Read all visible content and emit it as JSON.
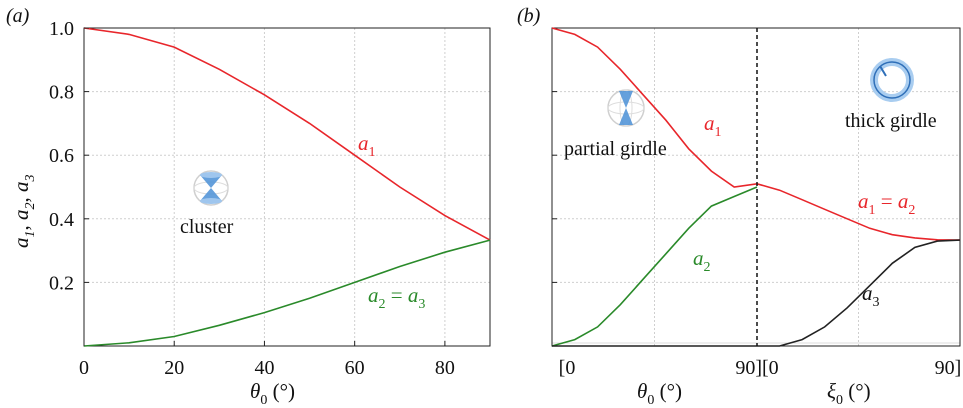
{
  "colors": {
    "red": "#e8262b",
    "green": "#2a8a2a",
    "black": "#222222",
    "icon": "#4a8fd6"
  },
  "chart_data": [
    {
      "type": "line",
      "panel": "(a)",
      "xlabel": "θ0 (°)",
      "ylabel": "a1, a2, a3",
      "xlim": [
        0,
        90
      ],
      "ylim": [
        0,
        1
      ],
      "x_ticks": [
        "0",
        "20",
        "40",
        "60",
        "80"
      ],
      "y_ticks": [
        "0.2",
        "0.4",
        "0.6",
        "0.8",
        "1.0"
      ],
      "grid": true,
      "series": [
        {
          "name": "a1",
          "color": "#e8262b",
          "x": [
            0,
            10,
            20,
            30,
            40,
            50,
            60,
            70,
            80,
            90
          ],
          "y": [
            1.0,
            0.98,
            0.94,
            0.87,
            0.79,
            0.7,
            0.6,
            0.5,
            0.41,
            0.333
          ]
        },
        {
          "name": "a2 = a3",
          "color": "#2a8a2a",
          "x": [
            0,
            10,
            20,
            30,
            40,
            50,
            60,
            70,
            80,
            90
          ],
          "y": [
            0.0,
            0.01,
            0.03,
            0.065,
            0.105,
            0.15,
            0.2,
            0.25,
            0.295,
            0.333
          ]
        }
      ],
      "annotations": {
        "a1": "a1",
        "a2a3": "a2 = a3",
        "cluster": "cluster"
      }
    },
    {
      "type": "line",
      "panel": "(b)",
      "xlabel_left": "θ0 (°)",
      "xlabel_right": "ξ0 (°)",
      "x_ticks": [
        "[0",
        "90][0",
        "90]"
      ],
      "ylim": [
        0,
        1
      ],
      "grid": true,
      "series": [
        {
          "name": "a1",
          "color": "#e8262b",
          "x": [
            0,
            10,
            20,
            30,
            40,
            50,
            60,
            70,
            80,
            90,
            100,
            110,
            120,
            130,
            140,
            150,
            160,
            170,
            180
          ],
          "y": [
            1.0,
            0.98,
            0.94,
            0.87,
            0.79,
            0.71,
            0.62,
            0.55,
            0.5,
            0.51,
            0.49,
            0.46,
            0.43,
            0.4,
            0.37,
            0.35,
            0.34,
            0.334,
            0.333
          ]
        },
        {
          "name": "a2",
          "color": "#2a8a2a",
          "x": [
            0,
            10,
            20,
            30,
            40,
            50,
            60,
            70,
            80,
            90
          ],
          "y": [
            0.0,
            0.02,
            0.06,
            0.13,
            0.21,
            0.29,
            0.37,
            0.44,
            0.47,
            0.5
          ]
        },
        {
          "name": "a3",
          "color": "#222222",
          "x": [
            0,
            90,
            100,
            110,
            120,
            130,
            140,
            150,
            160,
            170,
            180
          ],
          "y": [
            0.0,
            0.0,
            0.0,
            0.02,
            0.06,
            0.12,
            0.19,
            0.26,
            0.31,
            0.33,
            0.333
          ]
        }
      ],
      "annotations": {
        "a1": "a1",
        "a2": "a2",
        "a1a2": "a1 = a2",
        "a3": "a3",
        "partial": "partial girdle",
        "thick": "thick girdle"
      }
    }
  ]
}
